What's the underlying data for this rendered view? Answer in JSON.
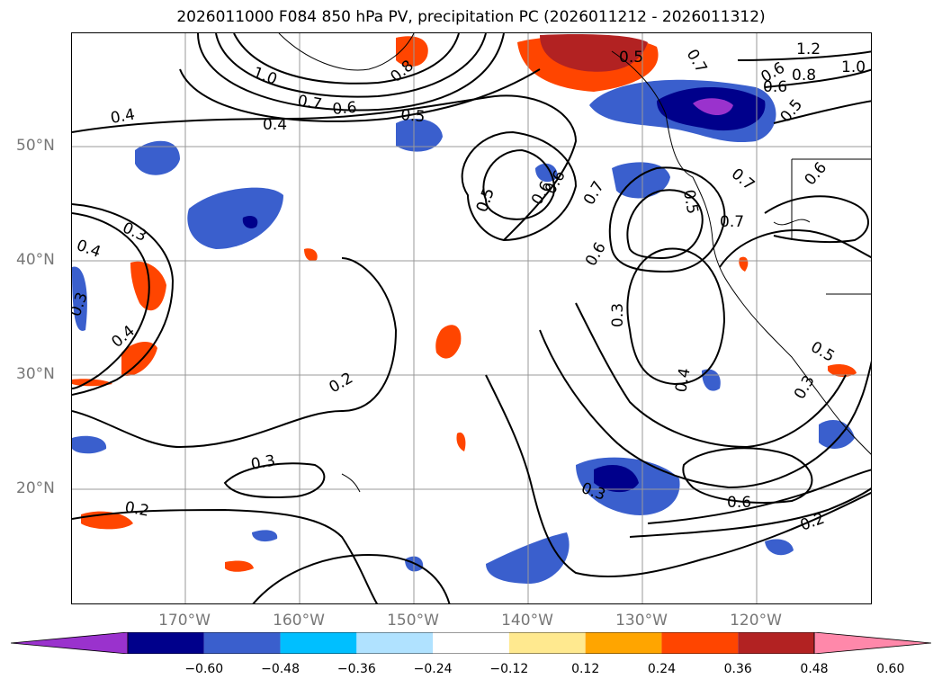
{
  "title": "2026011000 F084 850 hPa PV, precipitation PC (2026011212 - 2026011312)",
  "lat_labels": [
    "50°N",
    "40°N",
    "30°N",
    "20°N"
  ],
  "lon_labels": [
    "170°W",
    "160°W",
    "150°W",
    "140°W",
    "130°W",
    "120°W"
  ],
  "colorbar": {
    "ticks": [
      "−0.60",
      "−0.48",
      "−0.36",
      "−0.24",
      "−0.12",
      "0.12",
      "0.24",
      "0.36",
      "0.48",
      "0.60"
    ],
    "colors": [
      "#9a32cd",
      "#00008b",
      "#3a5fcd",
      "#00bfff",
      "#b0e2ff",
      "#ffffff",
      "#ffe98f",
      "#ffa500",
      "#ff4500",
      "#b22222",
      "#ff88aa"
    ]
  },
  "contour_labels": [
    "1.2",
    "1.0",
    "0.8",
    "0.7",
    "0.6",
    "0.5",
    "0.4",
    "0.3",
    "0.2"
  ],
  "contour_label_instances": [
    "0.7",
    "0.6",
    "0.5",
    "0.4",
    "1.0",
    "0.8",
    "0.7",
    "0.6",
    "0.5",
    "0.6",
    "0.5",
    "0.4",
    "0.3",
    "0.3",
    "0.2",
    "0.4",
    "0.3",
    "0.2",
    "0.6",
    "0.3",
    "0.2",
    "0.5",
    "0.4",
    "0.7",
    "0.6",
    "0.5",
    "0.3",
    "0.4",
    "0.6",
    "1.2",
    "1.0",
    "0.8",
    "0.7",
    "0.6",
    "0.5",
    "0.7",
    "0.6",
    "0.5",
    "0.3"
  ],
  "colors": {
    "contour": "#000000",
    "grid": "#999999",
    "label": "#777777"
  }
}
